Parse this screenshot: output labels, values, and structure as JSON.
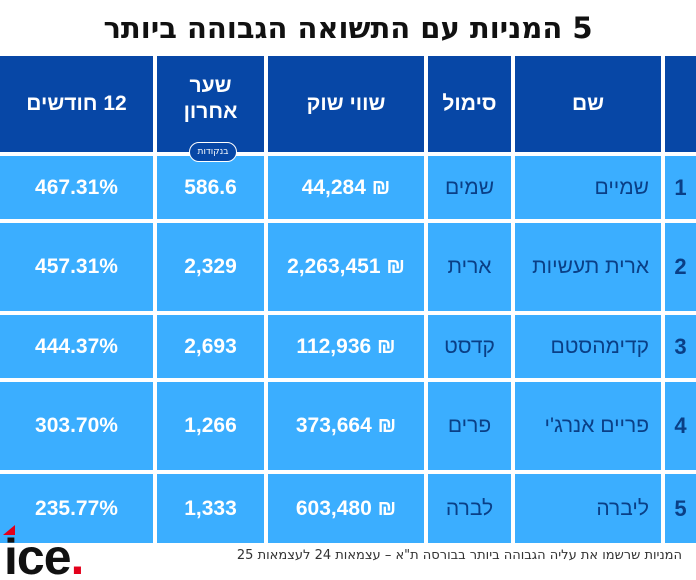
{
  "title": "5 המניות עם התשואה הגבוהה ביותר",
  "headers": {
    "name": "שם",
    "symbol": "סימול",
    "market_value": "שווי שוק",
    "last_price": "שער\nאחרון",
    "last_price_unit": "בנקודות",
    "twelve_months": "12 חודשים"
  },
  "rows": [
    {
      "rank": "1",
      "name": "שמיים",
      "symbol": "שמים",
      "market_value": "₪ 44,284",
      "last_price": "586.6",
      "twelve_months": "467.31%"
    },
    {
      "rank": "2",
      "name": "ארית תעשיות",
      "symbol": "ארית",
      "market_value": "₪ 2,263,451",
      "last_price": "2,329",
      "twelve_months": "457.31%"
    },
    {
      "rank": "3",
      "name": "קדימהסטם",
      "symbol": "קדסט",
      "market_value": "₪ 112,936",
      "last_price": "2,693",
      "twelve_months": "444.37%"
    },
    {
      "rank": "4",
      "name": "פריים אנרג'י",
      "symbol": "פרים",
      "market_value": "₪ 373,664",
      "last_price": "1,266",
      "twelve_months": "303.70%"
    },
    {
      "rank": "5",
      "name": "ליברה",
      "symbol": "לברה",
      "market_value": "₪ 603,480",
      "last_price": "1,333",
      "twelve_months": "235.77%"
    }
  ],
  "footer": {
    "note": "המניות שרשמו את עליה הגבוהה ביותר בבורסה ת\"א – עצמאות 24 לעצמאות 25",
    "logo_text": "ice",
    "logo_dot": "."
  },
  "colors": {
    "header_bg": "#0747a6",
    "row_bg": "#3baeff",
    "row_text_dark": "#0a3f86",
    "logo_dot": "#e3001b"
  }
}
